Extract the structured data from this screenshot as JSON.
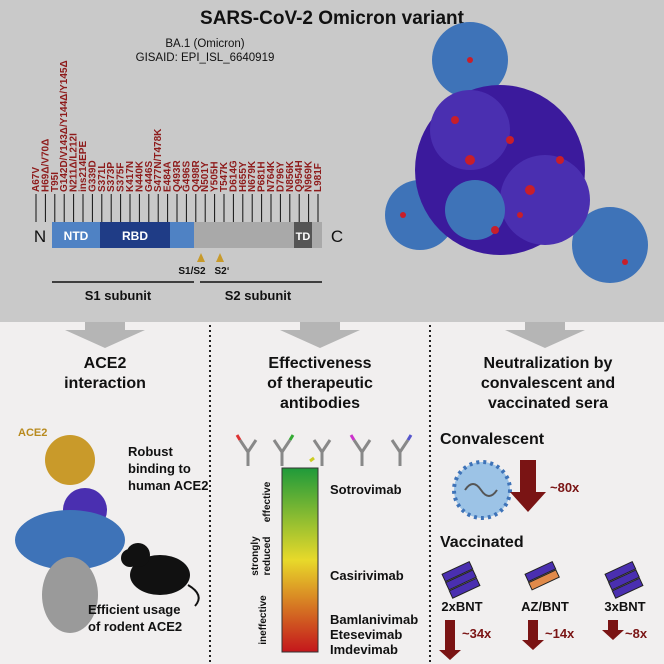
{
  "header": {
    "title": "SARS-CoV-2 Omicron variant",
    "lineage": "BA.1 (Omicron)",
    "gisaid": "GISAID: EPI_ISL_6640919"
  },
  "mutations": [
    "A67V",
    "H69Δ/V70Δ",
    "T95I",
    "G142D/V143Δ/Y144Δ/Y145Δ",
    "N211Δ/L212I",
    "ins214EPE",
    "G339D",
    "S371L",
    "S373P",
    "S375F",
    "K417N",
    "N440K",
    "G446S",
    "S477N/T478K",
    "E484A",
    "Q493R",
    "G496S",
    "Q498R",
    "N501Y",
    "Y505H",
    "T547K",
    "D614G",
    "H655Y",
    "N679K",
    "P681H",
    "N764K",
    "D796Y",
    "N856K",
    "Q954H",
    "N969K",
    "L981F"
  ],
  "domains": {
    "n_term": "N",
    "ntd": "NTD",
    "rbd": "RBD",
    "td": "TD",
    "c_term": "C",
    "s1s2": "S1/S2",
    "s2prime": "S2‘",
    "s1": "S1 subunit",
    "s2": "S2 subunit"
  },
  "panels": [
    {
      "title_lines": [
        "ACE2",
        "interaction"
      ],
      "ace2_label": "ACE2",
      "binding_lines": [
        "Robust",
        "binding to",
        "human ACE2"
      ],
      "rodent_lines": [
        "Efficient usage",
        "of rodent ACE2"
      ]
    },
    {
      "title_lines": [
        "Effectiveness",
        "of therapeutic",
        "antibodies"
      ],
      "scale": {
        "effective": "effective",
        "reduced_lines": [
          "strongly",
          "reduced"
        ],
        "ineffective": "ineffective"
      },
      "antibodies": [
        "Sotrovimab",
        "Casirivimab",
        "Bamlanivimab",
        "Etesevimab",
        "Imdevimab"
      ]
    },
    {
      "title_lines": [
        "Neutralization by",
        "convalescent and",
        "vaccinated sera"
      ],
      "convalescent": "Convalescent",
      "convalescent_fold": "~80x",
      "vaccinated": "Vaccinated",
      "regimens": [
        {
          "name": "2xBNT",
          "fold": "~34x"
        },
        {
          "name": "AZ/BNT",
          "fold": "~14x"
        },
        {
          "name": "3xBNT",
          "fold": "~8x"
        }
      ]
    }
  ]
}
